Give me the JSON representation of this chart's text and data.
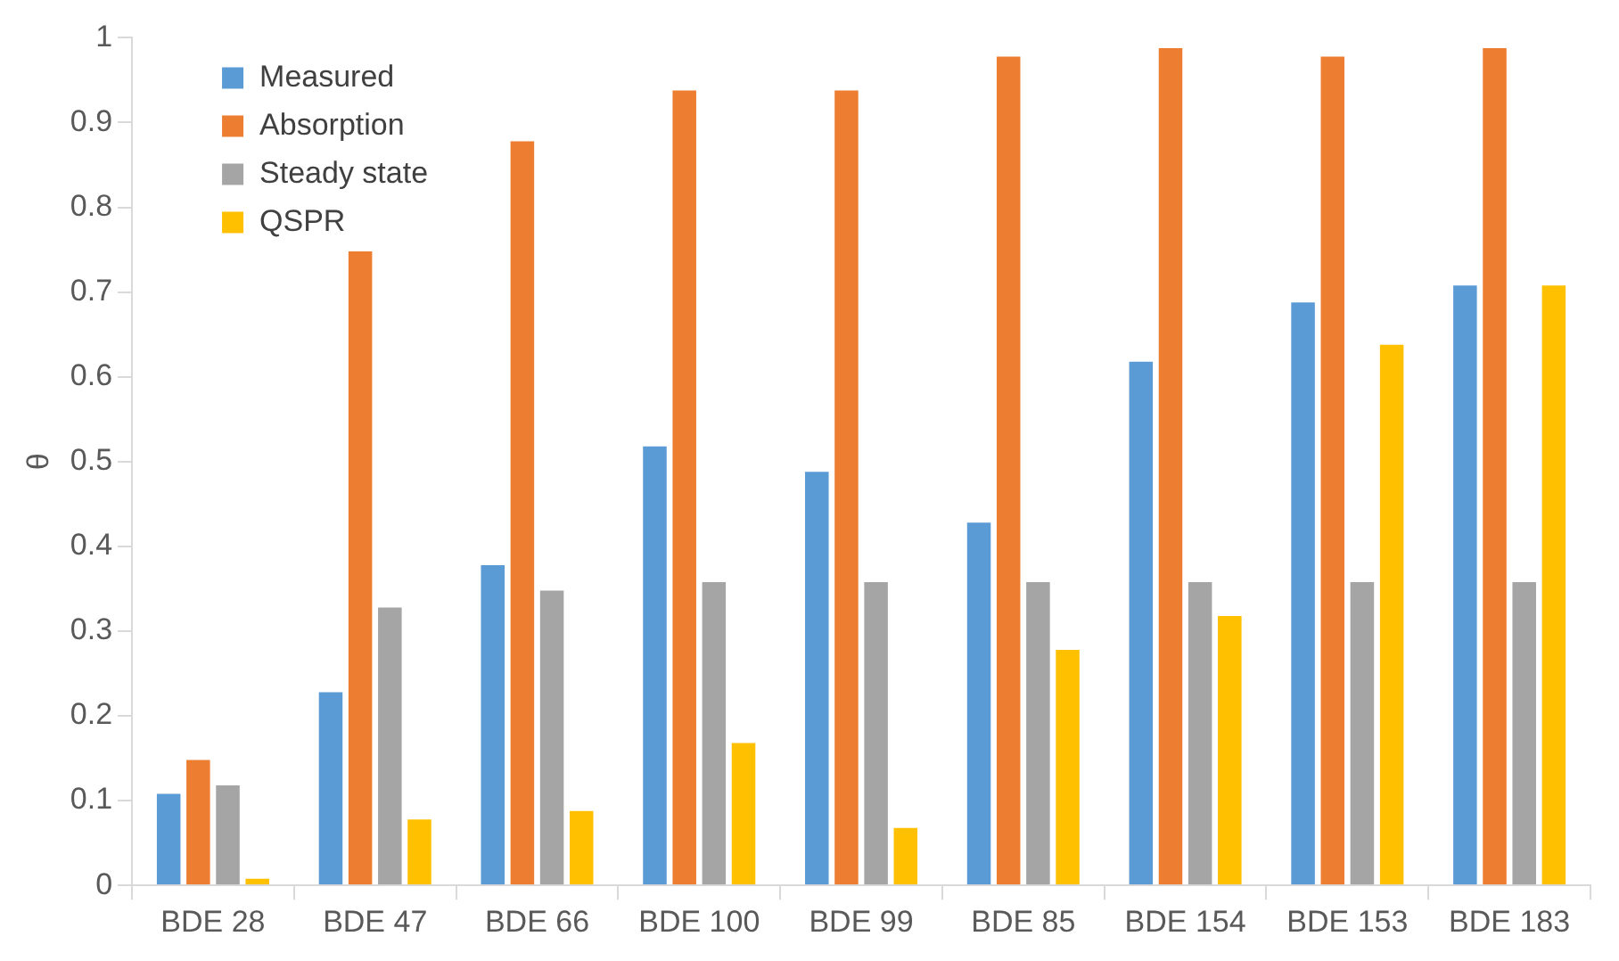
{
  "chart_data": {
    "type": "bar",
    "ylabel": "θ",
    "categories": [
      "BDE 28",
      "BDE 47",
      "BDE 66",
      "BDE 100",
      "BDE 99",
      "BDE 85",
      "BDE 154",
      "BDE 153",
      "BDE 183"
    ],
    "series": [
      {
        "name": "Measured",
        "color": "#5b9bd5",
        "values": [
          0.11,
          0.23,
          0.38,
          0.52,
          0.49,
          0.43,
          0.62,
          0.69,
          0.71
        ]
      },
      {
        "name": "Absorption",
        "color": "#ed7d31",
        "values": [
          0.15,
          0.75,
          0.88,
          0.94,
          0.94,
          0.98,
          0.99,
          0.98,
          0.99
        ]
      },
      {
        "name": "Steady state",
        "color": "#a5a5a5",
        "values": [
          0.12,
          0.33,
          0.35,
          0.36,
          0.36,
          0.36,
          0.36,
          0.36,
          0.36
        ]
      },
      {
        "name": "QSPR",
        "color": "#ffc000",
        "values": [
          0.01,
          0.08,
          0.09,
          0.17,
          0.07,
          0.28,
          0.32,
          0.64,
          0.71
        ]
      }
    ],
    "ylim": [
      0,
      1
    ],
    "yticks": [
      0,
      0.1,
      0.2,
      0.3,
      0.4,
      0.5,
      0.6,
      0.7,
      0.8,
      0.9,
      1
    ],
    "grid": false,
    "legend": "top left"
  }
}
